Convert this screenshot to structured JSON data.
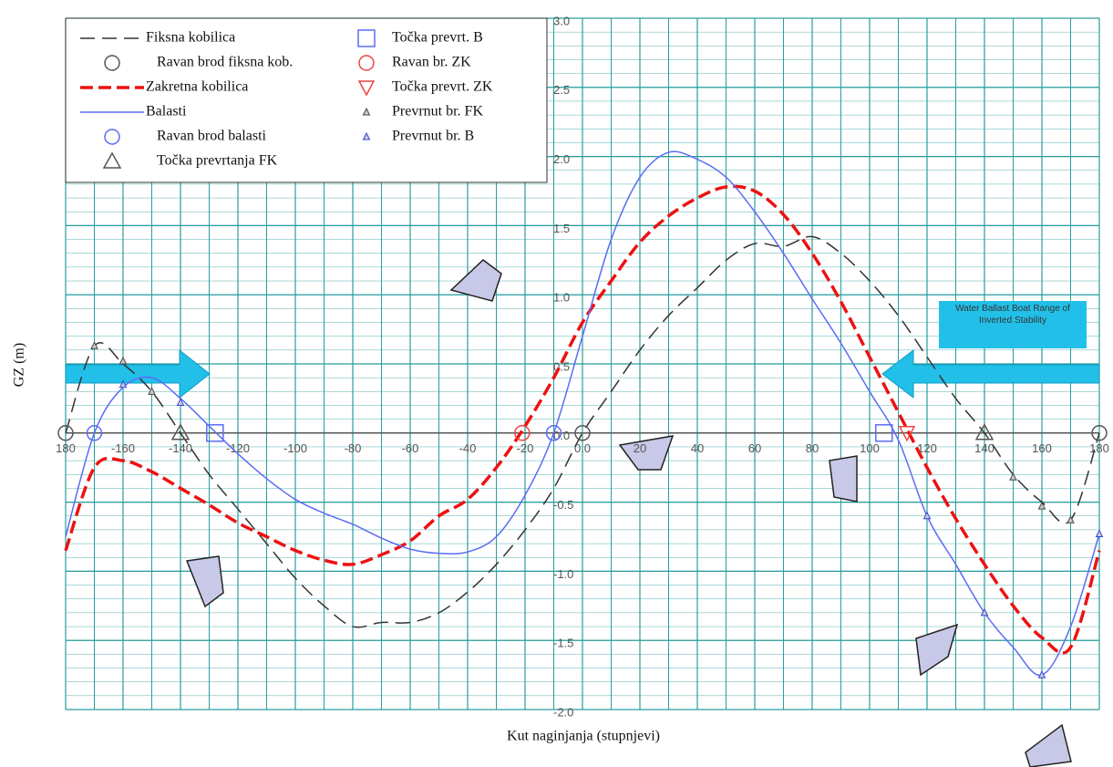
{
  "chart_data": {
    "type": "line",
    "xlabel": "Kut naginjanja (stupnjevi)",
    "ylabel": "GZ (m)",
    "annotation": "Water Ballast Boat Range of Inverted Stability",
    "xlim": [
      -180,
      180
    ],
    "ylim": [
      -2,
      3
    ],
    "xticks": [
      {
        "value": -180,
        "label": "180"
      },
      -160,
      -140,
      -120,
      -100,
      -80,
      -60,
      -40,
      -20,
      {
        "value": 0,
        "label": "0.0"
      },
      20,
      40,
      60,
      80,
      100,
      120,
      140,
      160,
      180
    ],
    "yticks": [
      {
        "value": -2,
        "label": "-2.0"
      },
      -1.5,
      {
        "value": -1,
        "label": "-1.0"
      },
      -0.5,
      {
        "value": 0,
        "label": "0.0"
      },
      0.5,
      {
        "value": 1,
        "label": "1.0"
      },
      1.5,
      {
        "value": 2,
        "label": "2.0"
      },
      2.5,
      {
        "value": 3,
        "label": "3.0"
      }
    ],
    "grid": true,
    "legend": "upper left",
    "series": [
      {
        "name": "Fiksna kobilica",
        "color": "#333333",
        "style": "longdash",
        "x": [
          -180,
          -170,
          -160,
          -150,
          -140,
          -130,
          -120,
          -110,
          -100,
          -90,
          -80,
          -70,
          -60,
          -50,
          -40,
          -30,
          -20,
          -10,
          0,
          10,
          20,
          30,
          40,
          50,
          60,
          70,
          80,
          90,
          100,
          110,
          120,
          130,
          140,
          150,
          160,
          170,
          180
        ],
        "values": [
          0,
          0.63,
          0.5,
          0.3,
          0,
          -0.3,
          -0.55,
          -0.8,
          -1.05,
          -1.25,
          -1.4,
          -1.37,
          -1.37,
          -1.3,
          -1.15,
          -0.95,
          -0.7,
          -0.4,
          0,
          0.3,
          0.6,
          0.85,
          1.05,
          1.25,
          1.37,
          1.35,
          1.42,
          1.3,
          1.1,
          0.85,
          0.55,
          0.25,
          0,
          -0.3,
          -0.5,
          -0.63,
          0
        ]
      },
      {
        "name": "Ravan brod fiksna kob.",
        "color": "#555555",
        "marker": "circle",
        "x": [
          -180,
          0,
          180
        ],
        "values": [
          0,
          0,
          0
        ]
      },
      {
        "name": "Zakretna kobilica",
        "color": "#ee1111",
        "style": "dash",
        "x": [
          -180,
          -170,
          -160,
          -150,
          -140,
          -130,
          -120,
          -110,
          -100,
          -90,
          -80,
          -70,
          -60,
          -50,
          -40,
          -30,
          -20,
          -10,
          0,
          10,
          20,
          30,
          40,
          50,
          60,
          70,
          80,
          90,
          100,
          110,
          120,
          130,
          140,
          150,
          160,
          170,
          180
        ],
        "values": [
          -0.85,
          -0.25,
          -0.2,
          -0.28,
          -0.4,
          -0.52,
          -0.65,
          -0.75,
          -0.85,
          -0.92,
          -0.95,
          -0.88,
          -0.78,
          -0.6,
          -0.48,
          -0.25,
          0.05,
          0.4,
          0.8,
          1.1,
          1.38,
          1.57,
          1.7,
          1.78,
          1.75,
          1.58,
          1.3,
          0.95,
          0.55,
          0.15,
          -0.25,
          -0.62,
          -0.95,
          -1.25,
          -1.48,
          -1.55,
          -0.85
        ]
      },
      {
        "name": "Balasti",
        "color": "#5b6cf5",
        "style": "solid",
        "x": [
          -180,
          -170,
          -160,
          -150,
          -140,
          -130,
          -120,
          -110,
          -100,
          -90,
          -80,
          -70,
          -60,
          -50,
          -40,
          -30,
          -20,
          -10,
          0,
          10,
          20,
          30,
          40,
          50,
          60,
          70,
          80,
          90,
          100,
          110,
          120,
          130,
          140,
          150,
          160,
          170,
          180
        ],
        "values": [
          -0.75,
          0,
          0.33,
          0.4,
          0.25,
          0.05,
          -0.15,
          -0.33,
          -0.48,
          -0.58,
          -0.66,
          -0.76,
          -0.84,
          -0.87,
          -0.86,
          -0.75,
          -0.45,
          0,
          0.7,
          1.4,
          1.85,
          2.03,
          1.98,
          1.85,
          1.6,
          1.3,
          0.97,
          0.65,
          0.3,
          -0.05,
          -0.6,
          -0.95,
          -1.3,
          -1.55,
          -1.75,
          -1.4,
          -0.73
        ]
      },
      {
        "name": "Ravan brod balasti",
        "color": "#5b6cf5",
        "marker": "circle",
        "x": [
          -170,
          -10
        ],
        "values": [
          0,
          0
        ]
      },
      {
        "name": "Točka prevrtanja FK",
        "color": "#555555",
        "marker": "triangle",
        "x": [
          -140,
          140
        ],
        "values": [
          0,
          0
        ]
      },
      {
        "name": "Točka prevrt. B",
        "color": "#5b6cf5",
        "marker": "square",
        "x": [
          -128,
          105
        ],
        "values": [
          0,
          0
        ]
      },
      {
        "name": "Ravan br. ZK",
        "color": "#ee4444",
        "marker": "circle",
        "x": [
          -21
        ],
        "values": [
          0
        ]
      },
      {
        "name": "Točka prevrt. ZK",
        "color": "#ee4444",
        "marker": "triangle-down",
        "x": [
          113
        ],
        "values": [
          0
        ]
      },
      {
        "name": "Prevrnut br. FK",
        "color": "#444444",
        "marker": "small-triangle",
        "x": [
          -170,
          -160,
          -150,
          150,
          160,
          170
        ],
        "values": [
          0.63,
          0.52,
          0.3,
          -0.32,
          -0.53,
          -0.63
        ]
      },
      {
        "name": "Prevrnut br. B",
        "color": "#3344dd",
        "marker": "small-triangle",
        "x": [
          -160,
          -140,
          120,
          140,
          160,
          180
        ],
        "values": [
          0.35,
          0.22,
          -0.6,
          -1.3,
          -1.75,
          -0.73
        ]
      }
    ]
  }
}
